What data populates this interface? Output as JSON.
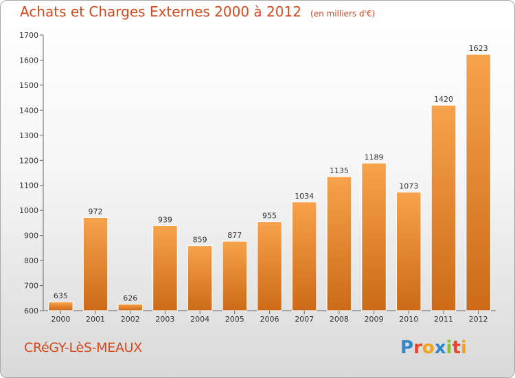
{
  "chart_data": {
    "type": "bar",
    "title": "Achats et Charges Externes 2000 à 2012",
    "subtitle": "(en milliers d'€)",
    "categories": [
      "2000",
      "2001",
      "2002",
      "2003",
      "2004",
      "2005",
      "2006",
      "2007",
      "2008",
      "2009",
      "2010",
      "2011",
      "2012"
    ],
    "values": [
      635,
      972,
      626,
      939,
      859,
      877,
      955,
      1034,
      1135,
      1189,
      1073,
      1420,
      1623
    ],
    "ylim": [
      600,
      1700
    ],
    "yticks": [
      600,
      700,
      800,
      900,
      1000,
      1100,
      1200,
      1300,
      1400,
      1500,
      1600,
      1700
    ],
    "grid": false,
    "xlabel": "",
    "ylabel": "",
    "colors": {
      "bar_light": "#f7a24c",
      "bar_dark": "#cc6a18",
      "title": "#d34a1f"
    }
  },
  "footer": {
    "place_name": "CRéGY-LèS-MEAUX",
    "logo_text": "Proxiti",
    "logo_colors": [
      "#2f86c8",
      "#e8462a",
      "#f0a21a",
      "#2f86c8",
      "#8bbf2c",
      "#e8462a",
      "#f0a21a"
    ]
  }
}
